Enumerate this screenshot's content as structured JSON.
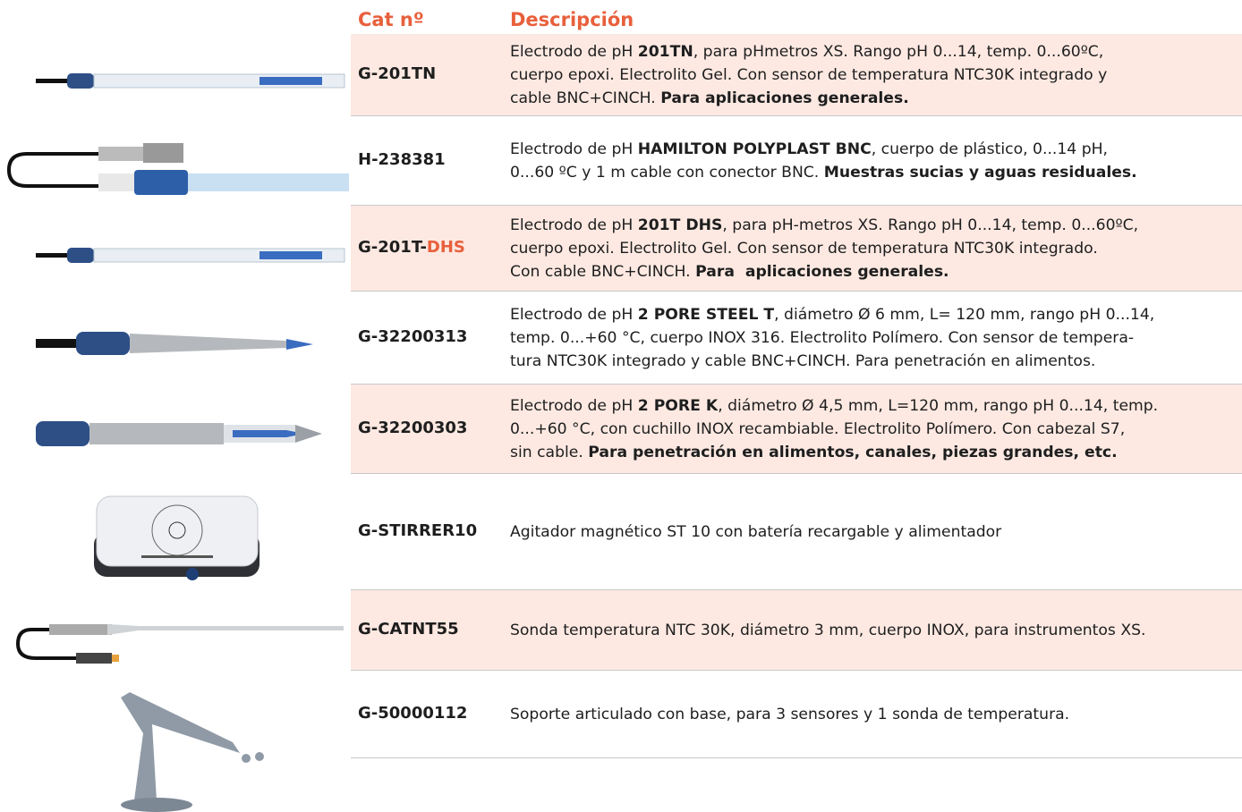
{
  "header": {
    "code": "Cat nº",
    "description": "Descripción"
  },
  "rows": [
    {
      "code": [
        {
          "text": "G-201TN"
        }
      ],
      "description": [
        [
          {
            "text": "Electrodo de pH "
          },
          {
            "text": "201TN",
            "bold": true
          },
          {
            "text": ", para pHmetros XS. Rango pH 0...14, temp. 0...60ºC,"
          }
        ],
        [
          {
            "text": "cuerpo epoxi. Electrolito Gel. Con sensor de temperatura NTC30K integrado y"
          }
        ],
        [
          {
            "text": "cable BNC+CINCH. "
          },
          {
            "text": "Para aplicaciones generales.",
            "bold": true
          }
        ]
      ]
    },
    {
      "code": [
        {
          "text": "H-238381"
        }
      ],
      "description": [
        [
          {
            "text": "Electrodo de pH "
          },
          {
            "text": "HAMILTON POLYPLAST BNC",
            "bold": true
          },
          {
            "text": ", cuerpo de plástico, 0...14 pH,"
          }
        ],
        [
          {
            "text": "0...60 ºC y 1 m cable con conector BNC. "
          },
          {
            "text": "Muestras sucias y aguas residuales.",
            "bold": true
          }
        ]
      ]
    },
    {
      "code": [
        {
          "text": "G-201T-"
        },
        {
          "text": "DHS",
          "accent": true
        }
      ],
      "description": [
        [
          {
            "text": "Electrodo de pH "
          },
          {
            "text": "201T DHS",
            "bold": true
          },
          {
            "text": ", para pH-metros XS. Rango pH 0...14, temp. 0...60ºC,"
          }
        ],
        [
          {
            "text": "cuerpo epoxi. Electrolito Gel. Con sensor de temperatura NTC30K integrado."
          }
        ],
        [
          {
            "text": "Con cable BNC+CINCH. "
          },
          {
            "text": "Para  aplicaciones generales.",
            "bold": true
          }
        ]
      ]
    },
    {
      "code": [
        {
          "text": "G-32200313"
        }
      ],
      "description": [
        [
          {
            "text": "Electrodo de pH "
          },
          {
            "text": "2 PORE STEEL T",
            "bold": true
          },
          {
            "text": ", diámetro Ø 6 mm, L= 120 mm, rango pH 0...14,"
          }
        ],
        [
          {
            "text": "temp. 0...+60 °C, cuerpo INOX 316. Electrolito Polímero. Con sensor de tempera-"
          }
        ],
        [
          {
            "text": "tura NTC30K integrado y cable BNC+CINCH. Para penetración en alimentos."
          }
        ]
      ]
    },
    {
      "code": [
        {
          "text": "G-32200303"
        }
      ],
      "description": [
        [
          {
            "text": "Electrodo de pH "
          },
          {
            "text": "2 PORE K",
            "bold": true
          },
          {
            "text": ", diámetro Ø 4,5 mm, L=120 mm, rango pH 0...14, temp."
          }
        ],
        [
          {
            "text": "0...+60 °C, con cuchillo INOX recambiable. Electrolito Polímero. Con cabezal S7,"
          }
        ],
        [
          {
            "text": "sin cable. "
          },
          {
            "text": "Para penetración en alimentos, canales, piezas grandes, etc.",
            "bold": true
          }
        ]
      ]
    },
    {
      "code": [
        {
          "text": "G-STIRRER10"
        }
      ],
      "description": [
        [
          {
            "text": "Agitador magnético ST 10 con batería recargable y alimentador"
          }
        ]
      ]
    },
    {
      "code": [
        {
          "text": "G-CATNT55"
        }
      ],
      "description": [
        [
          {
            "text": "Sonda temperatura NTC 30K, diámetro 3 mm, cuerpo INOX, para instrumentos XS."
          }
        ]
      ]
    },
    {
      "code": [
        {
          "text": "G-50000112"
        }
      ],
      "description": [
        [
          {
            "text": "Soporte articulado con base, para 3 sensores y 1 sonda de temperatura."
          }
        ]
      ]
    }
  ]
}
